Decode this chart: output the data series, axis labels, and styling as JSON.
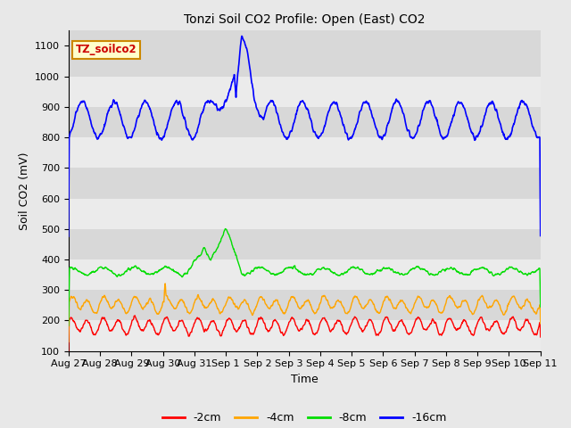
{
  "title": "Tonzi Soil CO2 Profile: Open (East) CO2",
  "xlabel": "Time",
  "ylabel": "Soil CO2 (mV)",
  "ylim": [
    100,
    1150
  ],
  "yticks": [
    100,
    200,
    300,
    400,
    500,
    600,
    700,
    800,
    900,
    1000,
    1100
  ],
  "bg_color": "#e8e8e8",
  "plot_bg_color": "#e0e0e0",
  "band_color_light": "#ebebeb",
  "band_color_dark": "#d8d8d8",
  "colors": {
    "2cm": "#ff0000",
    "4cm": "#ffa500",
    "8cm": "#00dd00",
    "16cm": "#0000ff"
  },
  "legend_labels": [
    "-2cm",
    "-4cm",
    "-8cm",
    "-16cm"
  ],
  "annotation_text": "TZ_soilco2",
  "annotation_color": "#cc0000",
  "annotation_bg": "#ffffcc",
  "annotation_border": "#cc8800",
  "xtick_labels": [
    "Aug 27",
    "Aug 28",
    "Aug 29",
    "Aug 30",
    "Aug 31",
    "Sep 1",
    "Sep 2",
    "Sep 3",
    "Sep 4",
    "Sep 5",
    "Sep 6",
    "Sep 7",
    "Sep 8",
    "Sep 9",
    "Sep 10",
    "Sep 11"
  ],
  "xtick_positions": [
    0,
    1,
    2,
    3,
    4,
    5,
    6,
    7,
    8,
    9,
    10,
    11,
    12,
    13,
    14,
    15
  ]
}
